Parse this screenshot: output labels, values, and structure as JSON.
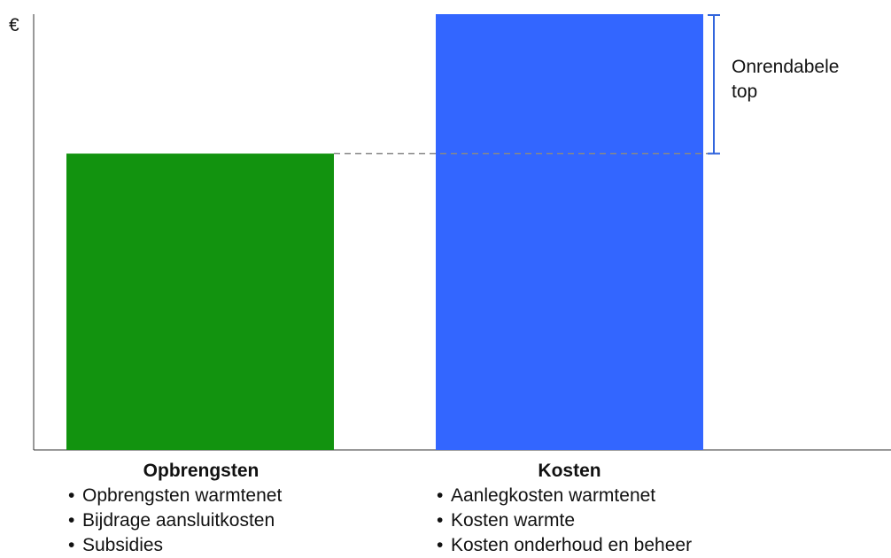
{
  "chart_data": {
    "type": "bar",
    "categories": [
      "Opbrengsten",
      "Kosten"
    ],
    "values": [
      68,
      100
    ],
    "ylabel": "€",
    "ylim": [
      0,
      100
    ],
    "grid": false,
    "colors": [
      "#12930f",
      "#3366ff"
    ],
    "reference_line": {
      "value": 68,
      "style": "dashed",
      "color": "#888888"
    },
    "annotation": {
      "lines": [
        "Onrendabele",
        "top"
      ],
      "range": [
        68,
        100
      ],
      "color": "#3366dd"
    },
    "category_details": [
      {
        "title": "Opbrengsten",
        "bullet": "•",
        "items": [
          "Opbrengsten warmtenet",
          "Bijdrage aansluitkosten",
          "Subsidies"
        ]
      },
      {
        "title": "Kosten",
        "bullet": "•",
        "items": [
          "Aanlegkosten warmtenet",
          "Kosten warmte",
          "Kosten onderhoud en beheer"
        ]
      }
    ]
  }
}
